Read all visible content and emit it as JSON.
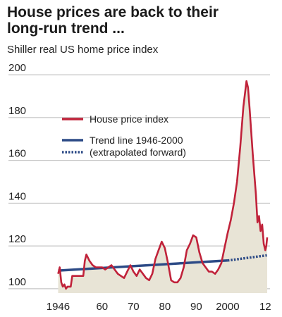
{
  "header": {
    "title_line1": "House prices are back to their",
    "title_line2": "long-run trend ...",
    "subtitle": "Shiller real US home price index"
  },
  "colors": {
    "house_price": "#c0223a",
    "trend": "#2c4a86",
    "area_fill": "#e8e4d6",
    "grid": "#b9b9b9"
  },
  "chart_data": {
    "type": "line",
    "title": "House prices are back to their long-run trend ...",
    "subtitle": "Shiller real US home price index",
    "xlabel": "",
    "ylabel": "",
    "xlim": [
      1945,
      2013.5
    ],
    "ylim": [
      98,
      202
    ],
    "x_tick_labels": [
      "1946",
      "60",
      "70",
      "80",
      "90",
      "2000",
      "12"
    ],
    "x_tick_values": [
      1946,
      1960,
      1970,
      1980,
      1990,
      2000,
      2012
    ],
    "y_ticks": [
      100,
      120,
      140,
      160,
      180,
      200
    ],
    "grid": true,
    "legend_position": "upper-left",
    "series": [
      {
        "name": "House price index",
        "style": "solid-red",
        "x": [
          1946,
          1946.5,
          1947,
          1947.5,
          1948,
          1948.5,
          1949,
          1950,
          1950.5,
          1951,
          1952,
          1953,
          1954,
          1954.5,
          1955,
          1956,
          1957,
          1958,
          1959,
          1960,
          1961,
          1962,
          1963,
          1964,
          1965,
          1966,
          1967,
          1968,
          1969,
          1970,
          1971,
          1972,
          1973,
          1974,
          1975,
          1976,
          1977,
          1978,
          1979,
          1980,
          1981,
          1982,
          1983,
          1984,
          1985,
          1986,
          1987,
          1988,
          1989,
          1990,
          1991,
          1992,
          1993,
          1994,
          1995,
          1996,
          1997,
          1998,
          1999,
          2000,
          2001,
          2002,
          2003,
          2004,
          2005,
          2006,
          2006.5,
          2007,
          2008,
          2009,
          2009.5,
          2010,
          2010.5,
          2011,
          2011.5,
          2012,
          2012.3,
          2012.6
        ],
        "values": [
          107,
          110,
          103,
          101,
          102,
          100,
          101,
          101,
          106,
          106,
          106,
          106,
          106,
          113,
          116,
          113,
          111,
          110,
          110,
          110,
          109,
          110,
          111,
          109,
          107,
          106,
          105,
          108,
          111,
          108,
          106,
          109,
          107,
          105,
          104,
          107,
          114,
          118,
          122,
          119,
          112,
          104,
          103,
          103,
          105,
          110,
          118,
          121,
          125,
          124,
          117,
          112,
          110,
          108,
          108,
          107,
          109,
          112,
          119,
          126,
          132,
          140,
          150,
          166,
          185,
          197,
          194,
          184,
          163,
          144,
          131,
          134,
          127,
          130,
          121,
          118,
          120,
          124
        ]
      },
      {
        "name": "Trend line 1946-2000",
        "style": "solid-blue",
        "x": [
          1946,
          2000
        ],
        "values": [
          108.5,
          113.2
        ]
      },
      {
        "name": "(extrapolated forward)",
        "style": "dotted-blue",
        "x": [
          2000,
          2012.5
        ],
        "values": [
          113.2,
          115.6
        ]
      }
    ]
  }
}
